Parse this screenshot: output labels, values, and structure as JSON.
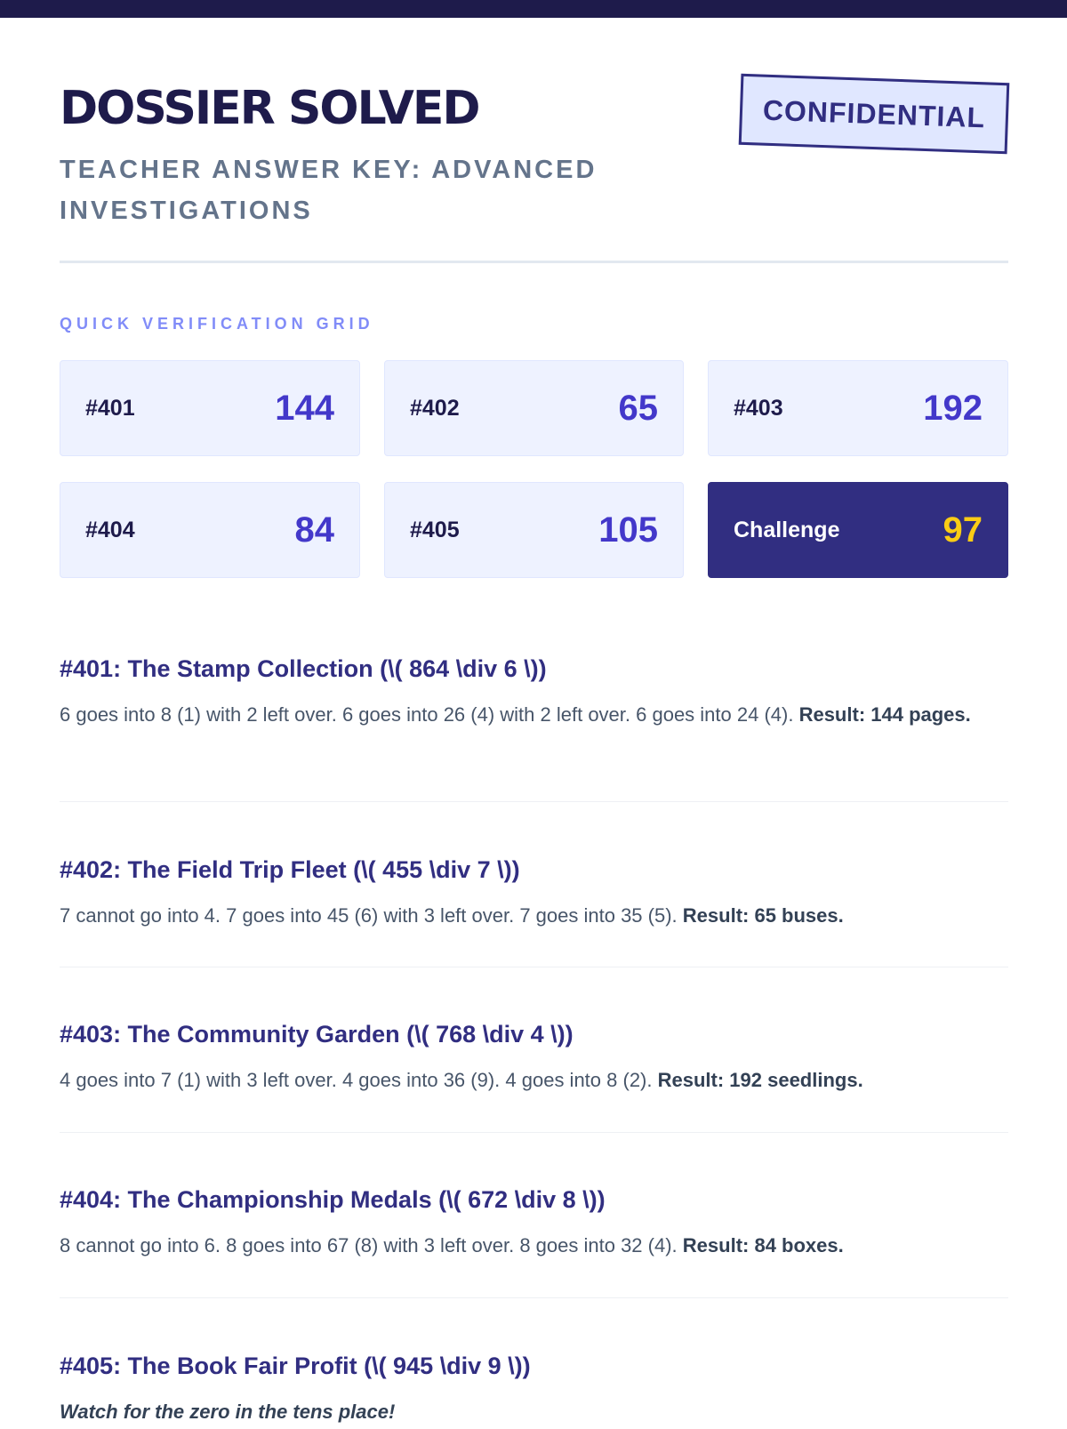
{
  "header": {
    "title": "DOSSIER SOLVED",
    "subtitle": "TEACHER ANSWER KEY: ADVANCED INVESTIGATIONS",
    "stamp": "CONFIDENTIAL"
  },
  "grid": {
    "label": "QUICK VERIFICATION GRID",
    "cells": [
      {
        "id": "#401",
        "value": "144"
      },
      {
        "id": "#402",
        "value": "65"
      },
      {
        "id": "#403",
        "value": "192"
      },
      {
        "id": "#404",
        "value": "84"
      },
      {
        "id": "#405",
        "value": "105"
      },
      {
        "id": "Challenge",
        "value": "97"
      }
    ]
  },
  "colors": {
    "dark": "#1e1b4b",
    "accent": "#4338ca",
    "challenge_bg": "#312e81",
    "challenge_value": "#facc15"
  },
  "sections": [
    {
      "heading": "#401: The Stamp Collection (\\( 864 \\div 6 \\))",
      "text": "6 goes into 8 (1) with 2 left over. 6 goes into 26 (4) with 2 left over. 6 goes into 24 (4). ",
      "result": "Result: 144 pages."
    },
    {
      "heading": "#402: The Field Trip Fleet (\\( 455 \\div 7 \\))",
      "text": "7 cannot go into 4. 7 goes into 45 (6) with 3 left over. 7 goes into 35 (5). ",
      "result": "Result: 65 buses."
    },
    {
      "heading": "#403: The Community Garden (\\( 768 \\div 4 \\))",
      "text": "4 goes into 7 (1) with 3 left over. 4 goes into 36 (9). 4 goes into 8 (2). ",
      "result": "Result: 192 seedlings."
    },
    {
      "heading": "#404: The Championship Medals (\\( 672 \\div 8 \\))",
      "text": "8 cannot go into 6. 8 goes into 67 (8) with 3 left over. 8 goes into 32 (4). ",
      "result": "Result: 84 boxes."
    },
    {
      "heading": "#405: The Book Fair Profit (\\( 945 \\div 9 \\))",
      "note": "Watch for the zero in the tens place!"
    }
  ]
}
